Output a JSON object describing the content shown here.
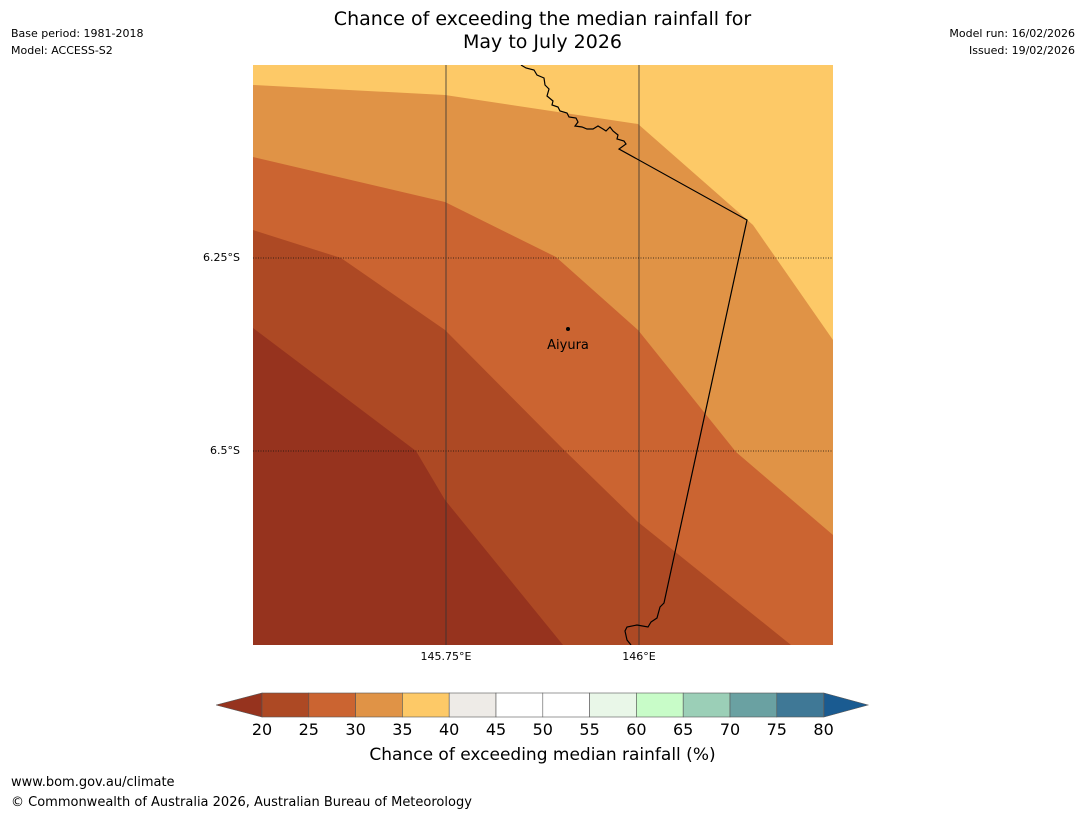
{
  "header": {
    "base_period": "Base period: 1981-2018",
    "model": "Model: ACCESS-S2",
    "model_run": "Model run: 16/02/2026",
    "issued": "Issued: 19/02/2026",
    "title_line1": "Chance of exceeding the median rainfall for",
    "title_line2": "May to July 2026"
  },
  "map": {
    "place": "Aiyura",
    "lat_labels": [
      "6.25°S",
      "6.5°S"
    ],
    "lon_labels": [
      "145.75°E",
      "146°E"
    ],
    "zones": [
      {
        "range": "35-40",
        "color": "#fdc967"
      },
      {
        "range": "30-35",
        "color": "#e09346"
      },
      {
        "range": "25-30",
        "color": "#cb6431"
      },
      {
        "range": "20-25",
        "color": "#ad4924"
      },
      {
        "range": "<20",
        "color": "#96331e"
      }
    ]
  },
  "colorbar": {
    "label": "Chance of exceeding median rainfall (%)",
    "ticks": [
      "20",
      "25",
      "30",
      "35",
      "40",
      "45",
      "50",
      "55",
      "60",
      "65",
      "70",
      "75",
      "80"
    ],
    "under_color": "#96331e",
    "over_color": "#1a5b91",
    "colors": [
      "#ad4924",
      "#cb6431",
      "#e09346",
      "#fdc967",
      "#eeebe7",
      "#ffffff",
      "#ffffff",
      "#e9f7e8",
      "#c8fcc8",
      "#9bcfb7",
      "#6aa1a2",
      "#3f7896"
    ]
  },
  "footer": {
    "url": "www.bom.gov.au/climate",
    "copyright": "© Commonwealth of Australia 2026, Australian Bureau of Meteorology"
  }
}
